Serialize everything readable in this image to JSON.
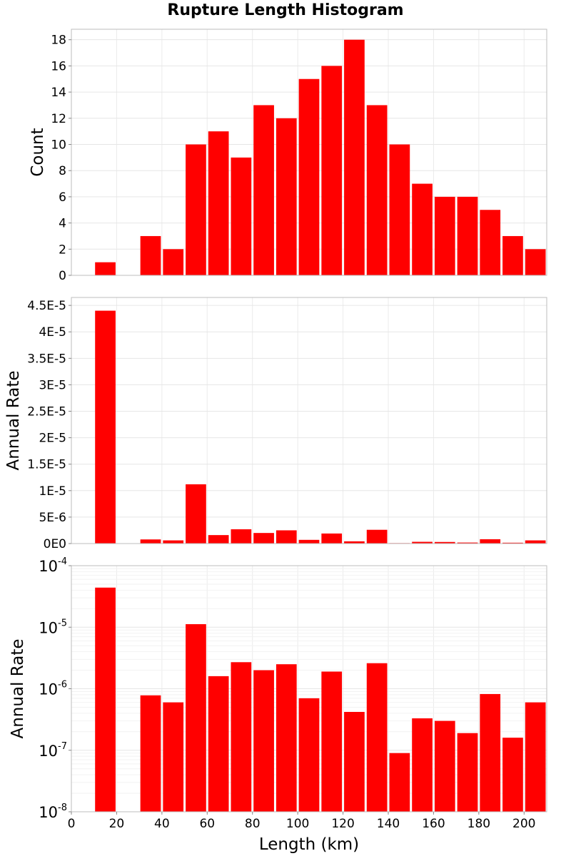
{
  "chart_data": {
    "type": "bar",
    "title": "Rupture Length Histogram",
    "bar_color": "#ff0000",
    "grid": true,
    "x": {
      "label": "Length (km)",
      "range": [
        0,
        210
      ],
      "ticks": [
        0,
        20,
        40,
        60,
        80,
        100,
        120,
        140,
        160,
        180,
        200
      ],
      "bin_width": 10,
      "bin_starts": [
        10,
        20,
        30,
        40,
        50,
        60,
        70,
        80,
        90,
        100,
        110,
        120,
        130,
        140,
        150,
        160,
        170,
        180,
        190,
        200
      ]
    },
    "panels": [
      {
        "id": "count",
        "ylabel": "Count",
        "scale": "linear",
        "ylim": [
          0,
          18.8
        ],
        "ticks": [
          0,
          2,
          4,
          6,
          8,
          10,
          12,
          14,
          16,
          18
        ],
        "tick_labels": [
          "0",
          "2",
          "4",
          "6",
          "8",
          "10",
          "12",
          "14",
          "16",
          "18"
        ],
        "values": [
          1,
          0,
          3,
          2,
          10,
          11,
          9,
          13,
          12,
          15,
          16,
          18,
          13,
          10,
          7,
          6,
          6,
          5,
          3,
          2
        ]
      },
      {
        "id": "rate-linear",
        "ylabel": "Annual Rate",
        "scale": "linear",
        "ylim": [
          0,
          4.65e-05
        ],
        "ticks": [
          0,
          5e-06,
          1e-05,
          1.5e-05,
          2e-05,
          2.5e-05,
          3e-05,
          3.5e-05,
          4e-05,
          4.5e-05
        ],
        "tick_labels": [
          "0E0",
          "5E-6",
          "1E-5",
          "1.5E-5",
          "2E-5",
          "2.5E-5",
          "3E-5",
          "3.5E-5",
          "4E-5",
          "4.5E-5"
        ],
        "values": [
          4.4e-05,
          0,
          7.8e-07,
          6e-07,
          1.12e-05,
          1.6e-06,
          2.7e-06,
          2e-06,
          2.5e-06,
          7e-07,
          1.9e-06,
          4.2e-07,
          2.6e-06,
          9e-08,
          3.3e-07,
          3e-07,
          1.9e-07,
          8.2e-07,
          1.6e-07,
          6e-07
        ]
      },
      {
        "id": "rate-log",
        "ylabel": "Annual Rate",
        "scale": "log",
        "ylim": [
          1e-08,
          0.0001
        ],
        "ticks": [
          1e-08,
          1e-07,
          1e-06,
          1e-05,
          0.0001
        ],
        "tick_labels": [
          {
            "base": "10",
            "exp": "-8"
          },
          {
            "base": "10",
            "exp": "-7"
          },
          {
            "base": "10",
            "exp": "-6"
          },
          {
            "base": "10",
            "exp": "-5"
          },
          {
            "base": "10",
            "exp": "-4"
          }
        ],
        "values": [
          4.4e-05,
          0,
          7.8e-07,
          6e-07,
          1.12e-05,
          1.6e-06,
          2.7e-06,
          2e-06,
          2.5e-06,
          7e-07,
          1.9e-06,
          4.2e-07,
          2.6e-06,
          9e-08,
          3.3e-07,
          3e-07,
          1.9e-07,
          8.2e-07,
          1.6e-07,
          6e-07
        ]
      }
    ]
  }
}
